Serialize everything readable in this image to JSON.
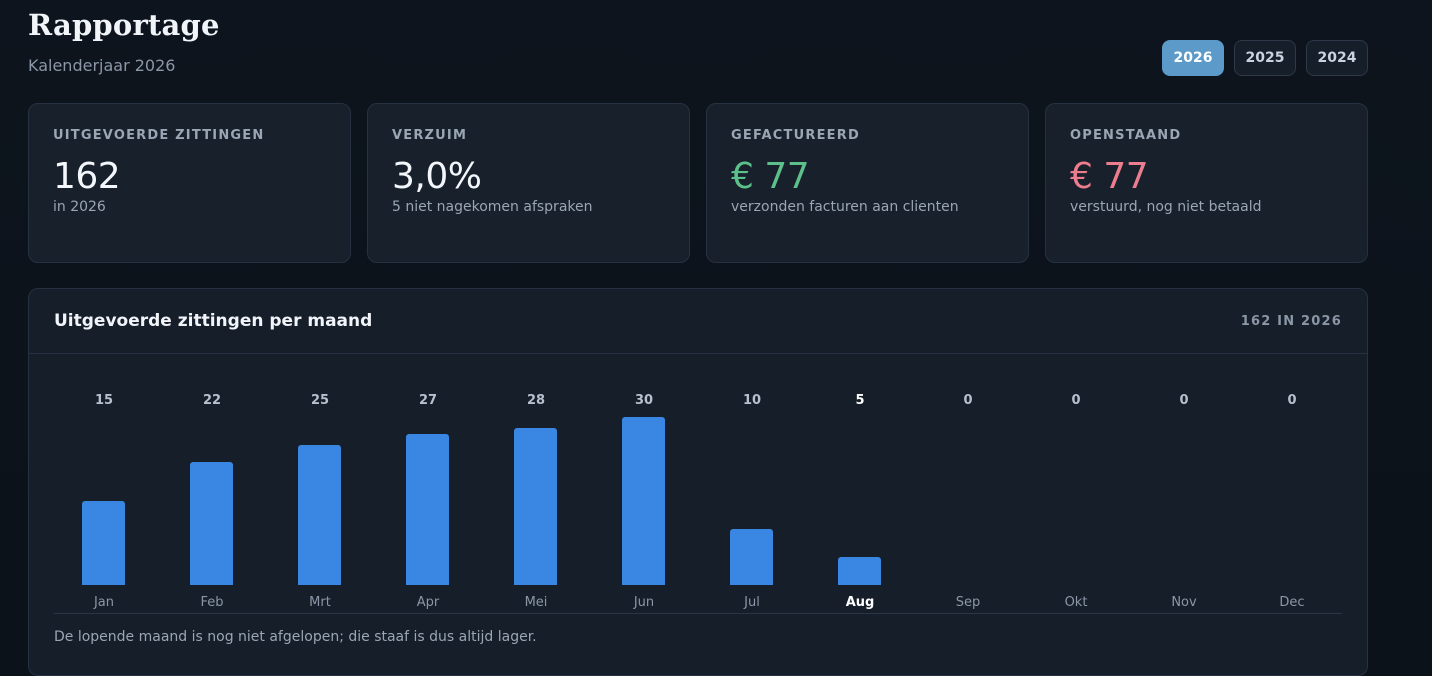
{
  "header": {
    "title": "Rapportage",
    "subtitle": "Kalenderjaar 2026"
  },
  "years": [
    "2026",
    "2025",
    "2024"
  ],
  "active_year": "2026",
  "stats": [
    {
      "label": "UITGEVOERDE ZITTINGEN",
      "value": "162",
      "note": "in 2026",
      "tone": "default"
    },
    {
      "label": "VERZUIM",
      "value": "3,0%",
      "note": "5 niet nagekomen afspraken",
      "tone": "default"
    },
    {
      "label": "GEFACTUREERD",
      "value": "€ 77",
      "note": "verzonden facturen aan clienten",
      "tone": "green"
    },
    {
      "label": "OPENSTAAND",
      "value": "€ 77",
      "note": "verstuurd, nog niet betaald",
      "tone": "red"
    }
  ],
  "chart": {
    "title": "Uitgevoerde zittingen per maand",
    "total": "162 IN 2026",
    "footnote": "De lopende maand is nog niet afgelopen; die staaf is dus altijd lager."
  },
  "chart_data": {
    "type": "bar",
    "categories": [
      "Jan",
      "Feb",
      "Mrt",
      "Apr",
      "Mei",
      "Jun",
      "Jul",
      "Aug",
      "Sep",
      "Okt",
      "Nov",
      "Dec"
    ],
    "values": [
      15,
      22,
      25,
      27,
      28,
      30,
      10,
      5,
      0,
      0,
      0,
      0
    ],
    "current_month": "Aug",
    "ylim": [
      0,
      30
    ],
    "color": "#3a86e3"
  },
  "colors": {
    "accent": "#5b9ac9",
    "bar": "#3a86e3",
    "positive": "#5cc08a",
    "negative": "#ec7d8e"
  }
}
